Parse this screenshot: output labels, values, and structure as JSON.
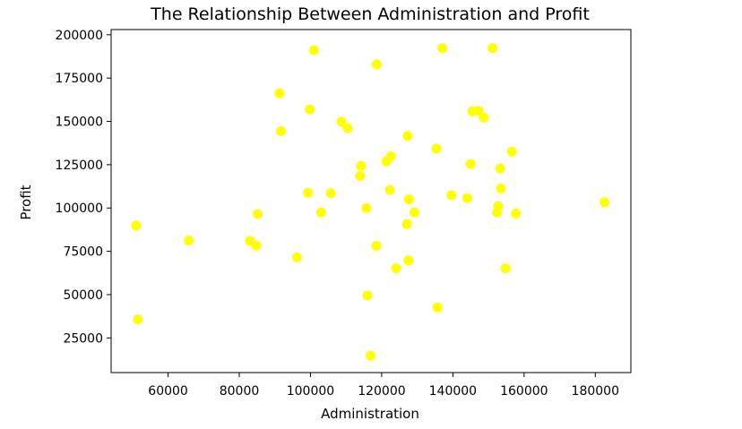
{
  "chart_data": {
    "type": "scatter",
    "title": "The Relationship Between Administration and Profit",
    "xlabel": "Administration",
    "ylabel": "Profit",
    "xlim": [
      44000,
      190000
    ],
    "ylim": [
      5000,
      203000
    ],
    "xticks": [
      60000,
      80000,
      100000,
      120000,
      140000,
      160000,
      180000
    ],
    "yticks": [
      25000,
      50000,
      75000,
      100000,
      125000,
      150000,
      175000,
      200000
    ],
    "xtick_labels": [
      "60000",
      "80000",
      "100000",
      "120000",
      "140000",
      "160000",
      "180000"
    ],
    "ytick_labels": [
      "25000",
      "50000",
      "75000",
      "100000",
      "125000",
      "150000",
      "175000",
      "200000"
    ],
    "grid": false,
    "color": "#ffff00",
    "x": [
      51000,
      51500,
      65800,
      83000,
      84800,
      85200,
      91300,
      91700,
      96200,
      99300,
      99800,
      101000,
      103000,
      105700,
      108700,
      110400,
      113900,
      114200,
      115700,
      116000,
      116900,
      118500,
      118600,
      121300,
      122300,
      122600,
      124100,
      127100,
      127300,
      127500,
      127700,
      129200,
      135400,
      135700,
      137000,
      139600,
      144000,
      145000,
      145500,
      147200,
      148700,
      151100,
      152400,
      152700,
      153300,
      153500,
      154800,
      156600,
      157700,
      182600
    ],
    "y": [
      89900,
      35700,
      81200,
      81000,
      78200,
      96500,
      166200,
      144300,
      71500,
      108700,
      156900,
      191100,
      97400,
      108600,
      149800,
      146100,
      118500,
      124300,
      99900,
      49500,
      14700,
      78200,
      182900,
      126900,
      110400,
      129900,
      65200,
      90700,
      141600,
      69800,
      105000,
      97500,
      134300,
      42600,
      192300,
      107400,
      105700,
      125400,
      155800,
      156100,
      152200,
      192300,
      97500,
      101000,
      122800,
      111300,
      65200,
      132600,
      96800,
      103300
    ]
  }
}
